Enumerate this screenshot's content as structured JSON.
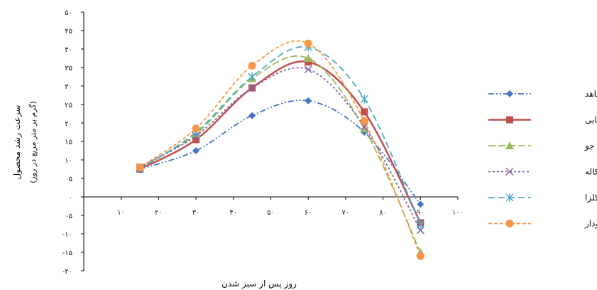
{
  "chart_data": {
    "type": "line",
    "xlabel": "روز پس از سبز شدن",
    "ylabel": "سرعت رشد محصول",
    "ylabel_sub": "(گرم بر متر مربع در روز)",
    "xlim": [
      0,
      100
    ],
    "ylim": [
      -20,
      50
    ],
    "x_ticks": [
      0,
      10,
      20,
      30,
      40,
      50,
      60,
      70,
      80,
      90,
      100
    ],
    "y_ticks": [
      -20,
      -15,
      -10,
      -5,
      0,
      5,
      10,
      15,
      20,
      25,
      30,
      35,
      40,
      45,
      50
    ],
    "x_tick_labels": [
      "۰",
      "۱۰",
      "۲۰",
      "۳۰",
      "۴۰",
      "۵۰",
      "۶۰",
      "۷۰",
      "۸۰",
      "۹۰",
      "۱۰۰"
    ],
    "y_tick_labels": [
      "-۲۰",
      "-۱۵",
      "-۱۰",
      "-۵",
      "۰",
      "۵",
      "۱۰",
      "۱۵",
      "۲۰",
      "۲۵",
      "۳۰",
      "۳۵",
      "۴۰",
      "۴۵",
      "۵۰"
    ],
    "legend_position": "right",
    "grid": false,
    "x": [
      15,
      30,
      45,
      60,
      75,
      90
    ],
    "series": [
      {
        "name": "شاهد",
        "values": [
          7.5,
          12.5,
          22,
          26,
          17.5,
          -2
        ],
        "color": "#4472C4",
        "marker": "diamond",
        "dash": "8 3 2 3 2 3"
      },
      {
        "name": "کنترل شیمیایی",
        "values": [
          7.5,
          15.5,
          29.5,
          36.5,
          23,
          -7
        ],
        "color": "#C0504D",
        "marker": "square",
        "dash": ""
      },
      {
        "name": "جو",
        "values": [
          8,
          17,
          32,
          37.5,
          18.5,
          -15
        ],
        "color": "#9BBB59",
        "marker": "triangle",
        "dash": "10 4"
      },
      {
        "name": "تریتیکاله",
        "values": [
          8,
          16.5,
          29.5,
          34.5,
          19,
          -9
        ],
        "color": "#8064A2",
        "marker": "x",
        "dash": "3 3"
      },
      {
        "name": "کلزا",
        "values": [
          7.5,
          17.5,
          32.5,
          40.5,
          26.5,
          -7.5
        ],
        "color": "#4BACC6",
        "marker": "star",
        "dash": "9 5"
      },
      {
        "name": "چاودار",
        "values": [
          8,
          18.5,
          35.5,
          41.5,
          20.5,
          -16
        ],
        "color": "#F79646",
        "marker": "circle",
        "dash": "5 3"
      }
    ]
  }
}
